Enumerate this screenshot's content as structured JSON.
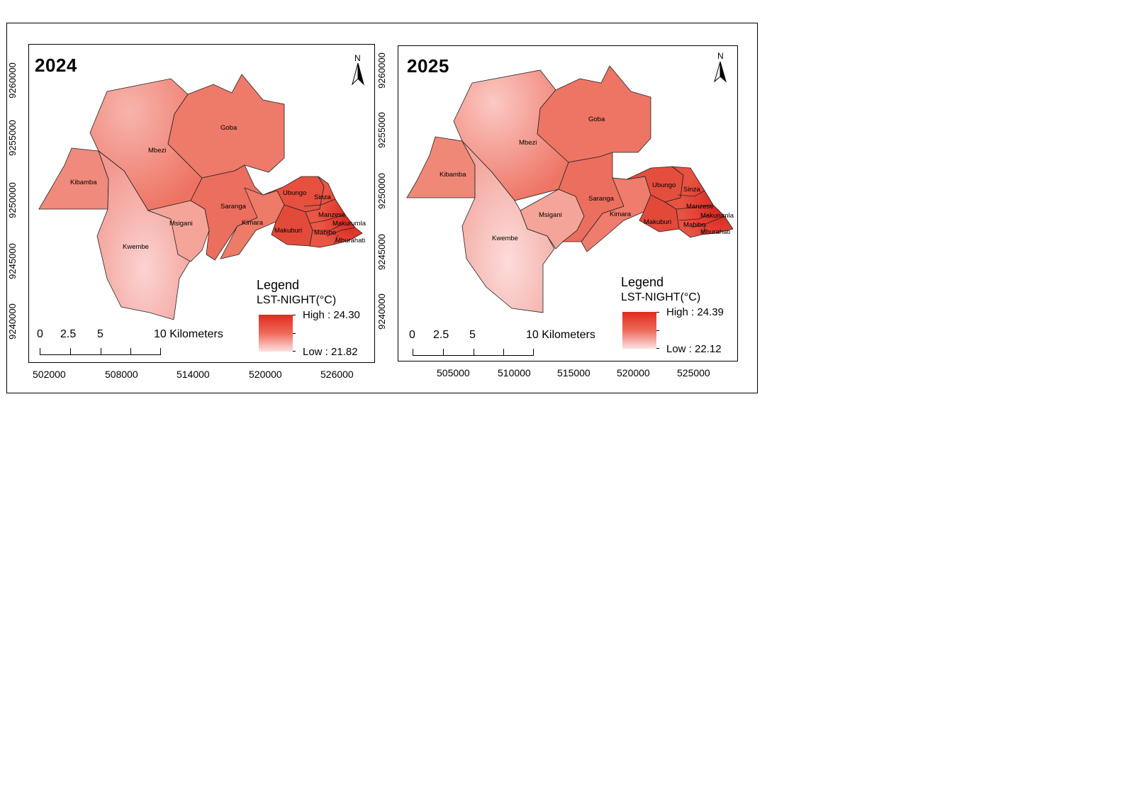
{
  "maps": [
    {
      "year": "2024",
      "y_ticks": [
        "9260000",
        "9255000",
        "9250000",
        "9245000",
        "9240000"
      ],
      "x_ticks": [
        "502000",
        "508000",
        "514000",
        "520000",
        "526000"
      ],
      "north": "N",
      "scale": {
        "labels": [
          "0",
          "2.5",
          "5",
          "10 Kilometers"
        ]
      },
      "legend": {
        "title": "Legend",
        "subtitle": "LST-NIGHT(°C)",
        "high": "High : 24.30",
        "low": "Low : 21.82"
      },
      "regions": [
        "Kibamba",
        "Mbezi",
        "Goba",
        "Kwembe",
        "Msigani",
        "Saranga",
        "Kimara",
        "Ubungo",
        "Sinza",
        "Makuburi",
        "Manzese",
        "Makurumla",
        "Mabibo",
        "Mburahati"
      ]
    },
    {
      "year": "2025",
      "y_ticks": [
        "9260000",
        "9255000",
        "9250000",
        "9245000",
        "9240000"
      ],
      "x_ticks": [
        "505000",
        "510000",
        "515000",
        "520000",
        "525000"
      ],
      "north": "N",
      "scale": {
        "labels": [
          "0",
          "2.5",
          "5",
          "10 Kilometers"
        ]
      },
      "legend": {
        "title": "Legend",
        "subtitle": "LST-NIGHT(°C)",
        "high": "High : 24.39",
        "low": "Low : 22.12"
      },
      "regions": [
        "Kibamba",
        "Mbezi",
        "Goba",
        "Kwembe",
        "Msigani",
        "Saranga",
        "Kimara",
        "Ubungo",
        "Sinza",
        "Makuburi",
        "Manzese",
        "Makurumla",
        "Mabibo",
        "Mburahati"
      ]
    }
  ],
  "colors": {
    "high": "#e02a1e",
    "mid": "#ee6a5a",
    "low": "#fde0e2"
  }
}
